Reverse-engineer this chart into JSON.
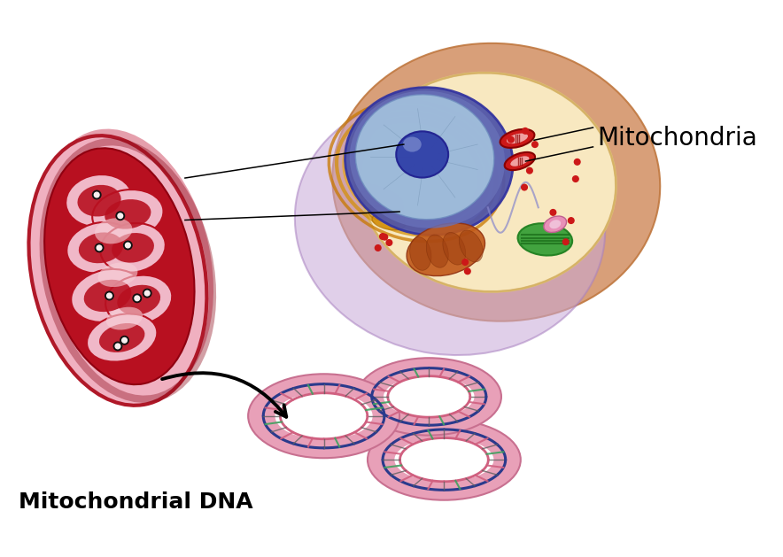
{
  "label_mitochondria": "Mitochondria",
  "label_dna": "Mitochondrial DNA",
  "bg_color": "#ffffff",
  "dna_ring_bg": "#e8a0b8",
  "dna_blue": "#2a3a8c",
  "dna_pink": "#d06080",
  "dna_green": "#40a060",
  "dna_red": "#cc2040"
}
